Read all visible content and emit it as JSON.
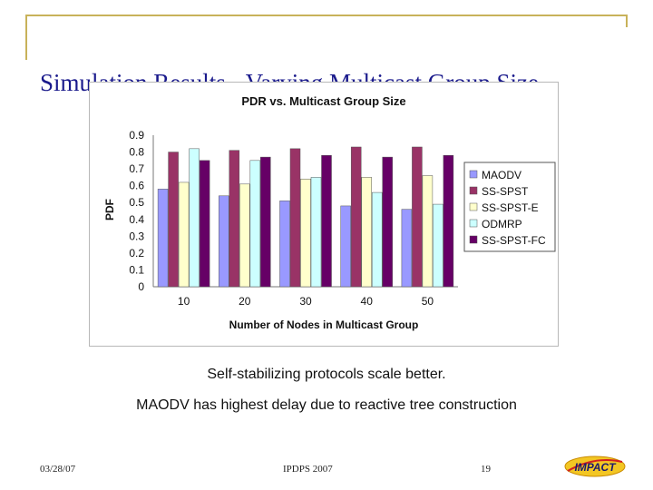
{
  "slide": {
    "title": "Simulation Results - Varying Multicast Group Size",
    "caption1": "Self-stabilizing protocols scale better.",
    "caption2": "MAODV has highest delay due to reactive tree construction",
    "footer_date": "03/28/07",
    "footer_center": "IPDPS 2007",
    "footer_page": "19",
    "logo_text": "IMPACT",
    "accent_color": "#c8b25a",
    "title_color": "#1a1a8c"
  },
  "chart_data": {
    "type": "bar",
    "title": "PDR vs. Multicast Group Size",
    "xlabel": "Number of Nodes in Multicast Group",
    "ylabel": "PDF",
    "ylim": [
      0,
      0.9
    ],
    "yticks": [
      "0",
      "0.1",
      "0.2",
      "0.3",
      "0.4",
      "0.5",
      "0.6",
      "0.7",
      "0.8",
      "0.9"
    ],
    "categories": [
      "10",
      "20",
      "30",
      "40",
      "50"
    ],
    "legend_position": "right",
    "grid": false,
    "series": [
      {
        "name": "MAODV",
        "color": "#9999ff",
        "values": [
          0.58,
          0.54,
          0.51,
          0.48,
          0.46
        ]
      },
      {
        "name": "SS-SPST",
        "color": "#993366",
        "values": [
          0.8,
          0.81,
          0.82,
          0.83,
          0.83
        ]
      },
      {
        "name": "SS-SPST-E",
        "color": "#ffffcc",
        "values": [
          0.62,
          0.61,
          0.64,
          0.65,
          0.66
        ]
      },
      {
        "name": "ODMRP",
        "color": "#ccffff",
        "values": [
          0.82,
          0.75,
          0.65,
          0.56,
          0.49
        ]
      },
      {
        "name": "SS-SPST-FC",
        "color": "#660066",
        "values": [
          0.75,
          0.77,
          0.78,
          0.77,
          0.78
        ]
      }
    ]
  }
}
